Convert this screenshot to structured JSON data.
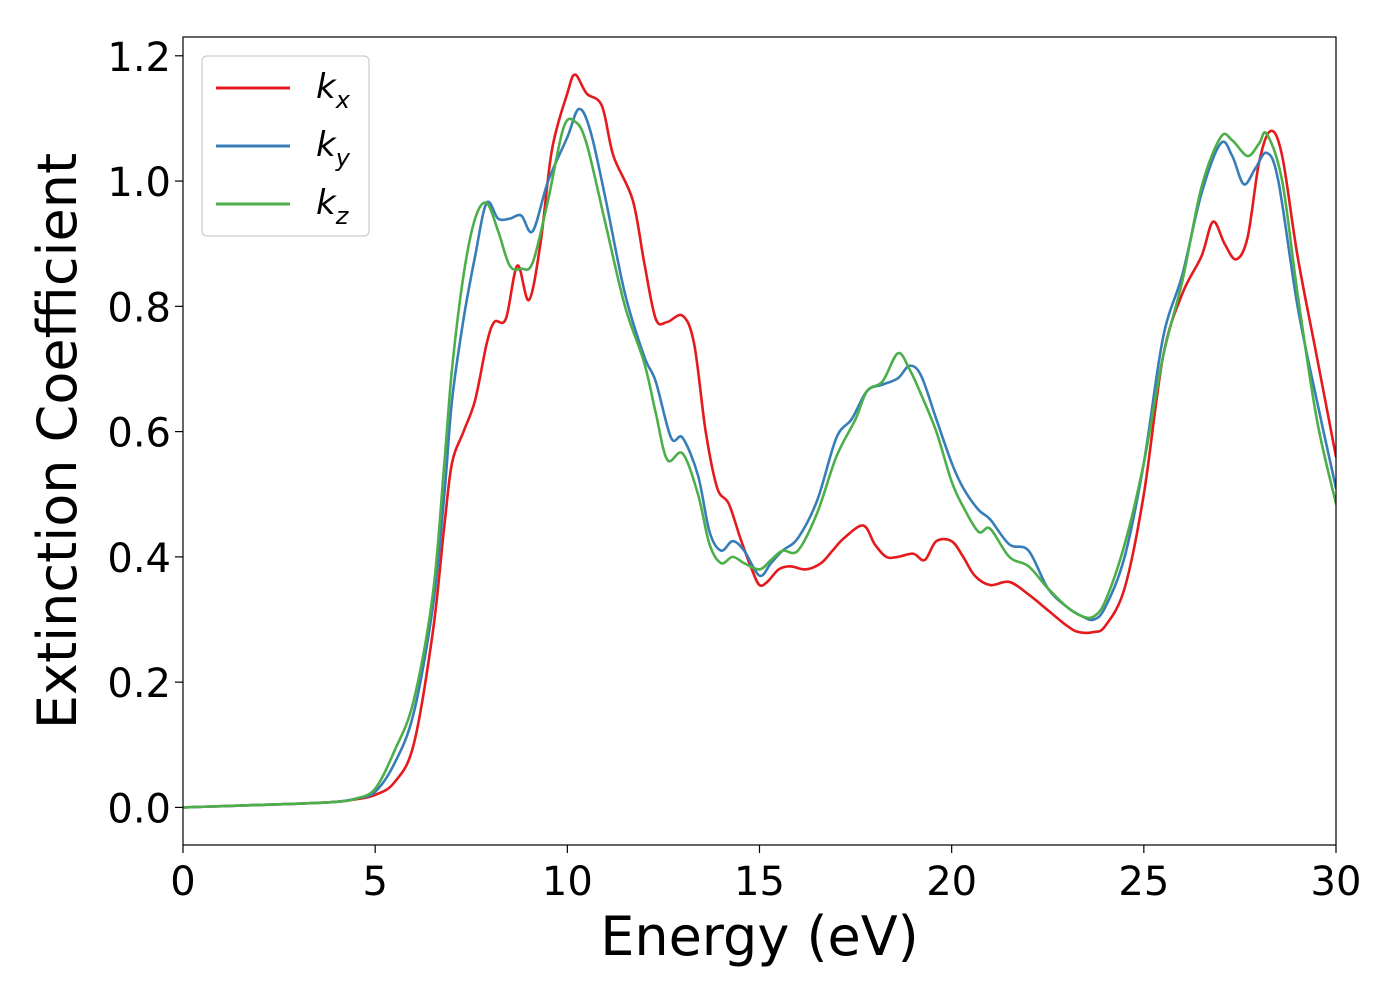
{
  "chart_data": {
    "type": "line",
    "xlabel": "Energy (eV)",
    "ylabel": "Extinction Coefficient",
    "xlim": [
      0,
      30
    ],
    "ylim": [
      -0.06,
      1.23
    ],
    "xticks": [
      0,
      5,
      10,
      15,
      20,
      25,
      30
    ],
    "xtick_labels": [
      "0",
      "5",
      "10",
      "15",
      "20",
      "25",
      "30"
    ],
    "yticks": [
      0.0,
      0.2,
      0.4,
      0.6,
      0.8,
      1.0,
      1.2
    ],
    "ytick_labels": [
      "0.0",
      "0.2",
      "0.4",
      "0.6",
      "0.8",
      "1.0",
      "1.2"
    ],
    "grid": false,
    "legend_position": "top-left",
    "series": [
      {
        "name": "kx",
        "label_main": "k",
        "label_sub": "x",
        "color": "#e41a1c",
        "points": [
          [
            0,
            0
          ],
          [
            1,
            0.002
          ],
          [
            2,
            0.004
          ],
          [
            3,
            0.006
          ],
          [
            4,
            0.009
          ],
          [
            4.5,
            0.013
          ],
          [
            5,
            0.02
          ],
          [
            5.5,
            0.04
          ],
          [
            6,
            0.1
          ],
          [
            6.5,
            0.28
          ],
          [
            6.8,
            0.45
          ],
          [
            7,
            0.55
          ],
          [
            7.3,
            0.6
          ],
          [
            7.6,
            0.65
          ],
          [
            7.9,
            0.74
          ],
          [
            8.1,
            0.775
          ],
          [
            8.4,
            0.78
          ],
          [
            8.7,
            0.865
          ],
          [
            9.0,
            0.81
          ],
          [
            9.3,
            0.9
          ],
          [
            9.6,
            1.05
          ],
          [
            10.0,
            1.14
          ],
          [
            10.2,
            1.17
          ],
          [
            10.5,
            1.14
          ],
          [
            10.9,
            1.12
          ],
          [
            11.2,
            1.04
          ],
          [
            11.7,
            0.97
          ],
          [
            12.0,
            0.87
          ],
          [
            12.3,
            0.78
          ],
          [
            12.6,
            0.775
          ],
          [
            13.0,
            0.785
          ],
          [
            13.3,
            0.74
          ],
          [
            13.6,
            0.6
          ],
          [
            13.9,
            0.51
          ],
          [
            14.2,
            0.485
          ],
          [
            14.5,
            0.43
          ],
          [
            14.8,
            0.38
          ],
          [
            15.0,
            0.355
          ],
          [
            15.2,
            0.36
          ],
          [
            15.5,
            0.38
          ],
          [
            15.8,
            0.385
          ],
          [
            16.2,
            0.38
          ],
          [
            16.6,
            0.39
          ],
          [
            16.9,
            0.41
          ],
          [
            17.2,
            0.43
          ],
          [
            17.7,
            0.45
          ],
          [
            18.0,
            0.42
          ],
          [
            18.3,
            0.4
          ],
          [
            18.6,
            0.4
          ],
          [
            19.0,
            0.405
          ],
          [
            19.3,
            0.395
          ],
          [
            19.6,
            0.425
          ],
          [
            20.0,
            0.425
          ],
          [
            20.3,
            0.4
          ],
          [
            20.6,
            0.37
          ],
          [
            21.0,
            0.355
          ],
          [
            21.5,
            0.36
          ],
          [
            22.0,
            0.34
          ],
          [
            22.5,
            0.315
          ],
          [
            23.0,
            0.29
          ],
          [
            23.3,
            0.28
          ],
          [
            23.7,
            0.28
          ],
          [
            24.0,
            0.29
          ],
          [
            24.5,
            0.35
          ],
          [
            25.0,
            0.5
          ],
          [
            25.5,
            0.72
          ],
          [
            26.0,
            0.82
          ],
          [
            26.5,
            0.88
          ],
          [
            26.8,
            0.935
          ],
          [
            27.1,
            0.9
          ],
          [
            27.4,
            0.875
          ],
          [
            27.7,
            0.91
          ],
          [
            28.0,
            1.03
          ],
          [
            28.3,
            1.08
          ],
          [
            28.6,
            1.04
          ],
          [
            29.0,
            0.88
          ],
          [
            29.5,
            0.72
          ],
          [
            30.0,
            0.56
          ]
        ]
      },
      {
        "name": "ky",
        "label_main": "k",
        "label_sub": "y",
        "color": "#377eb8",
        "points": [
          [
            0,
            0
          ],
          [
            1,
            0.002
          ],
          [
            2,
            0.004
          ],
          [
            3,
            0.006
          ],
          [
            4,
            0.009
          ],
          [
            4.5,
            0.014
          ],
          [
            5,
            0.025
          ],
          [
            5.5,
            0.07
          ],
          [
            6,
            0.15
          ],
          [
            6.5,
            0.32
          ],
          [
            6.8,
            0.5
          ],
          [
            7,
            0.65
          ],
          [
            7.3,
            0.78
          ],
          [
            7.6,
            0.88
          ],
          [
            7.9,
            0.965
          ],
          [
            8.2,
            0.94
          ],
          [
            8.5,
            0.94
          ],
          [
            8.8,
            0.945
          ],
          [
            9.1,
            0.92
          ],
          [
            9.5,
            1.0
          ],
          [
            10.0,
            1.07
          ],
          [
            10.3,
            1.115
          ],
          [
            10.6,
            1.08
          ],
          [
            11.0,
            0.97
          ],
          [
            11.5,
            0.82
          ],
          [
            12.0,
            0.72
          ],
          [
            12.3,
            0.68
          ],
          [
            12.7,
            0.59
          ],
          [
            13.0,
            0.59
          ],
          [
            13.4,
            0.53
          ],
          [
            13.7,
            0.44
          ],
          [
            14.0,
            0.41
          ],
          [
            14.3,
            0.425
          ],
          [
            14.6,
            0.41
          ],
          [
            15.0,
            0.37
          ],
          [
            15.3,
            0.39
          ],
          [
            15.6,
            0.41
          ],
          [
            16.0,
            0.43
          ],
          [
            16.5,
            0.49
          ],
          [
            17.0,
            0.59
          ],
          [
            17.4,
            0.62
          ],
          [
            17.8,
            0.665
          ],
          [
            18.2,
            0.675
          ],
          [
            18.6,
            0.685
          ],
          [
            18.9,
            0.705
          ],
          [
            19.2,
            0.69
          ],
          [
            19.6,
            0.62
          ],
          [
            20.0,
            0.55
          ],
          [
            20.3,
            0.51
          ],
          [
            20.7,
            0.475
          ],
          [
            21.0,
            0.46
          ],
          [
            21.5,
            0.42
          ],
          [
            22.0,
            0.41
          ],
          [
            22.5,
            0.35
          ],
          [
            23.0,
            0.32
          ],
          [
            23.4,
            0.305
          ],
          [
            23.7,
            0.3
          ],
          [
            24.0,
            0.32
          ],
          [
            24.5,
            0.4
          ],
          [
            25.0,
            0.55
          ],
          [
            25.5,
            0.75
          ],
          [
            26.0,
            0.85
          ],
          [
            26.5,
            0.98
          ],
          [
            27.0,
            1.06
          ],
          [
            27.3,
            1.04
          ],
          [
            27.6,
            0.995
          ],
          [
            27.9,
            1.02
          ],
          [
            28.2,
            1.045
          ],
          [
            28.5,
            1.0
          ],
          [
            29.0,
            0.8
          ],
          [
            29.5,
            0.65
          ],
          [
            30.0,
            0.51
          ]
        ]
      },
      {
        "name": "kz",
        "label_main": "k",
        "label_sub": "z",
        "color": "#4daf4a",
        "points": [
          [
            0,
            0
          ],
          [
            1,
            0.002
          ],
          [
            2,
            0.004
          ],
          [
            3,
            0.006
          ],
          [
            4,
            0.009
          ],
          [
            4.5,
            0.014
          ],
          [
            5,
            0.03
          ],
          [
            5.5,
            0.09
          ],
          [
            6,
            0.17
          ],
          [
            6.5,
            0.34
          ],
          [
            6.8,
            0.55
          ],
          [
            7,
            0.7
          ],
          [
            7.3,
            0.85
          ],
          [
            7.6,
            0.94
          ],
          [
            7.9,
            0.965
          ],
          [
            8.2,
            0.92
          ],
          [
            8.5,
            0.865
          ],
          [
            8.8,
            0.86
          ],
          [
            9.1,
            0.87
          ],
          [
            9.5,
            0.97
          ],
          [
            9.9,
            1.085
          ],
          [
            10.2,
            1.095
          ],
          [
            10.5,
            1.06
          ],
          [
            11.0,
            0.93
          ],
          [
            11.5,
            0.8
          ],
          [
            12.0,
            0.71
          ],
          [
            12.3,
            0.63
          ],
          [
            12.6,
            0.555
          ],
          [
            13.0,
            0.565
          ],
          [
            13.4,
            0.5
          ],
          [
            13.7,
            0.42
          ],
          [
            14.0,
            0.39
          ],
          [
            14.3,
            0.4
          ],
          [
            14.6,
            0.39
          ],
          [
            15.0,
            0.38
          ],
          [
            15.3,
            0.395
          ],
          [
            15.6,
            0.41
          ],
          [
            16.0,
            0.41
          ],
          [
            16.5,
            0.47
          ],
          [
            17.0,
            0.56
          ],
          [
            17.5,
            0.62
          ],
          [
            17.8,
            0.665
          ],
          [
            18.2,
            0.68
          ],
          [
            18.6,
            0.725
          ],
          [
            18.9,
            0.7
          ],
          [
            19.2,
            0.66
          ],
          [
            19.6,
            0.6
          ],
          [
            20.0,
            0.52
          ],
          [
            20.3,
            0.48
          ],
          [
            20.7,
            0.44
          ],
          [
            21.0,
            0.445
          ],
          [
            21.5,
            0.4
          ],
          [
            22.0,
            0.385
          ],
          [
            22.5,
            0.35
          ],
          [
            23.0,
            0.32
          ],
          [
            23.4,
            0.305
          ],
          [
            23.7,
            0.305
          ],
          [
            24.0,
            0.33
          ],
          [
            24.5,
            0.42
          ],
          [
            25.0,
            0.55
          ],
          [
            25.5,
            0.72
          ],
          [
            26.0,
            0.84
          ],
          [
            26.5,
            0.99
          ],
          [
            27.0,
            1.07
          ],
          [
            27.3,
            1.065
          ],
          [
            27.7,
            1.04
          ],
          [
            28.0,
            1.06
          ],
          [
            28.2,
            1.075
          ],
          [
            28.6,
            1.0
          ],
          [
            29.0,
            0.82
          ],
          [
            29.5,
            0.62
          ],
          [
            30.0,
            0.485
          ]
        ]
      }
    ]
  }
}
